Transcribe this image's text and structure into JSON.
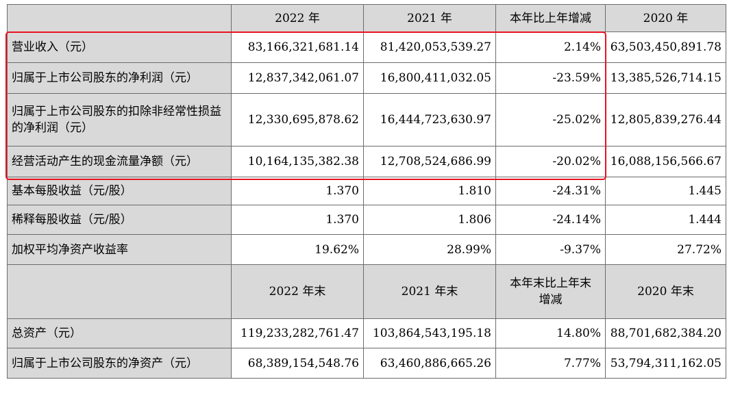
{
  "header1": [
    "",
    "2022 年",
    "2021 年",
    "本年比上年增减",
    "2020 年"
  ],
  "flow_rows": [
    {
      "label": "营业收入（元）",
      "values": [
        "83,166,321,681.14",
        "81,420,053,539.27",
        "2.14%",
        "63,503,450,891.78"
      ]
    },
    {
      "label": "归属于上市公司股东的净利润（元）",
      "values": [
        "12,837,342,061.07",
        "16,800,411,032.05",
        "-23.59%",
        "13,385,526,714.15"
      ]
    },
    {
      "label": "归属于上市公司股东的扣除非经常性损益的净利润（元）",
      "values": [
        "12,330,695,878.62",
        "16,444,723,630.97",
        "-25.02%",
        "12,805,839,276.44"
      ]
    },
    {
      "label": "经营活动产生的现金流量净额（元）",
      "values": [
        "10,164,135,382.38",
        "12,708,524,686.99",
        "-20.02%",
        "16,088,156,566.67"
      ]
    },
    {
      "label": "基本每股收益（元/股）",
      "values": [
        "1.370",
        "1.810",
        "-24.31%",
        "1.445"
      ]
    },
    {
      "label": "稀释每股收益（元/股）",
      "values": [
        "1.370",
        "1.806",
        "-24.14%",
        "1.444"
      ]
    },
    {
      "label": "加权平均净资产收益率",
      "values": [
        "19.62%",
        "28.99%",
        "-9.37%",
        "27.72%"
      ]
    }
  ],
  "header2": [
    "",
    "2022 年末",
    "2021 年末",
    "本年末比上年末增减",
    "2020 年末"
  ],
  "stock_rows": [
    {
      "label": "总资产（元）",
      "values": [
        "119,233,282,761.47",
        "103,864,543,195.18",
        "14.80%",
        "88,701,682,384.20"
      ]
    },
    {
      "label": "归属于上市公司股东的净资产（元）",
      "values": [
        "68,389,154,548.76",
        "63,460,886,665.26",
        "7.77%",
        "53,794,311,162.05"
      ]
    }
  ],
  "highlight_color": "#e8121f"
}
